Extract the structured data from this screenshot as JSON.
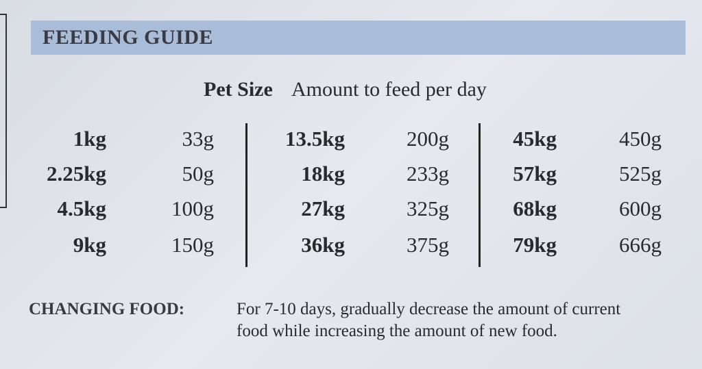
{
  "header": {
    "title": "FEEDING GUIDE"
  },
  "table": {
    "columns": [
      "Pet Size",
      "Amount to feed per day"
    ],
    "groups": [
      [
        [
          "1kg",
          "33g"
        ],
        [
          "2.25kg",
          "50g"
        ],
        [
          "4.5kg",
          "100g"
        ],
        [
          "9kg",
          "150g"
        ]
      ],
      [
        [
          "13.5kg",
          "200g"
        ],
        [
          "18kg",
          "233g"
        ],
        [
          "27kg",
          "325g"
        ],
        [
          "36kg",
          "375g"
        ]
      ],
      [
        [
          "45kg",
          "450g"
        ],
        [
          "57kg",
          "525g"
        ],
        [
          "68kg",
          "600g"
        ],
        [
          "79kg",
          "666g"
        ]
      ]
    ]
  },
  "note": {
    "label": "CHANGING FOOD:",
    "lines": [
      "For 7-10 days, gradually decrease the amount of current",
      "food while increasing the amount of new food."
    ]
  }
}
